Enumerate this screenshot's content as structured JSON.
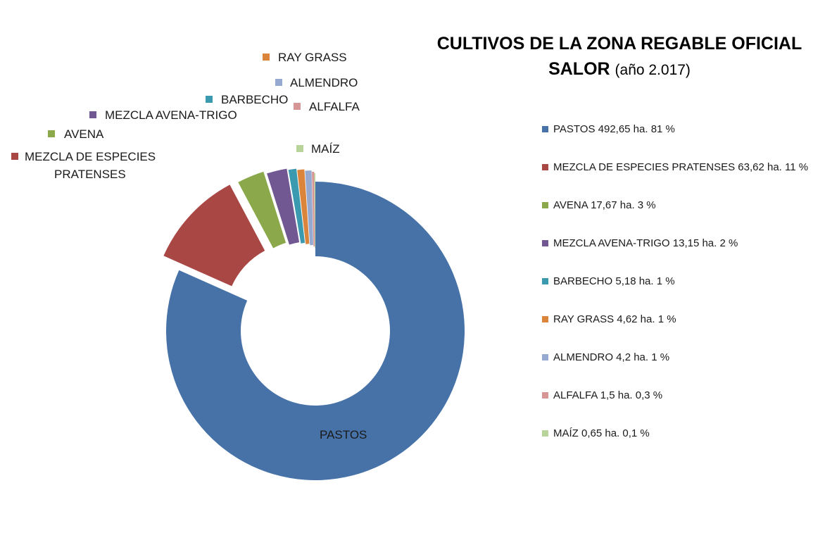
{
  "chart_data": {
    "type": "pie",
    "variant": "exploded-doughnut",
    "title_bold": "CULTIVOS DE LA ZONA REGABLE OFICIAL",
    "title_bold_2": "SALOR",
    "title_rest": "(año 2.017)",
    "slices": [
      {
        "label": "PASTOS",
        "value": 492.65,
        "legend": "PASTOS 492,65 ha. 81 %",
        "color": "#4672A8"
      },
      {
        "label": "MEZCLA DE ESPECIES PRATENSES",
        "value": 63.62,
        "legend": "MEZCLA DE ESPECIES PRATENSES 63,62 ha. 11 %",
        "color": "#A94745"
      },
      {
        "label": "AVENA",
        "value": 17.67,
        "legend": "AVENA 17,67 ha. 3 %",
        "color": "#8BA84A"
      },
      {
        "label": "MEZCLA AVENA-TRIGO",
        "value": 13.15,
        "legend": "MEZCLA AVENA-TRIGO 13,15 ha. 2 %",
        "color": "#715892"
      },
      {
        "label": "BARBECHO",
        "value": 5.18,
        "legend": "BARBECHO 5,18 ha. 1 %",
        "color": "#3B9AAF"
      },
      {
        "label": "RAY GRASS",
        "value": 4.62,
        "legend": "RAY GRASS 4,62 ha. 1 %",
        "color": "#DA843C"
      },
      {
        "label": "ALMENDRO",
        "value": 4.2,
        "legend": "ALMENDRO 4,2 ha. 1 %",
        "color": "#95A9D1"
      },
      {
        "label": "ALFALFA",
        "value": 1.5,
        "legend": "ALFALFA 1,5 ha. 0,3 %",
        "color": "#D69695"
      },
      {
        "label": "MAÍZ",
        "value": 0.65,
        "legend": "MAÍZ 0,65 ha. 0,1 %",
        "color": "#B9D49A"
      }
    ],
    "legend_position": "right"
  }
}
